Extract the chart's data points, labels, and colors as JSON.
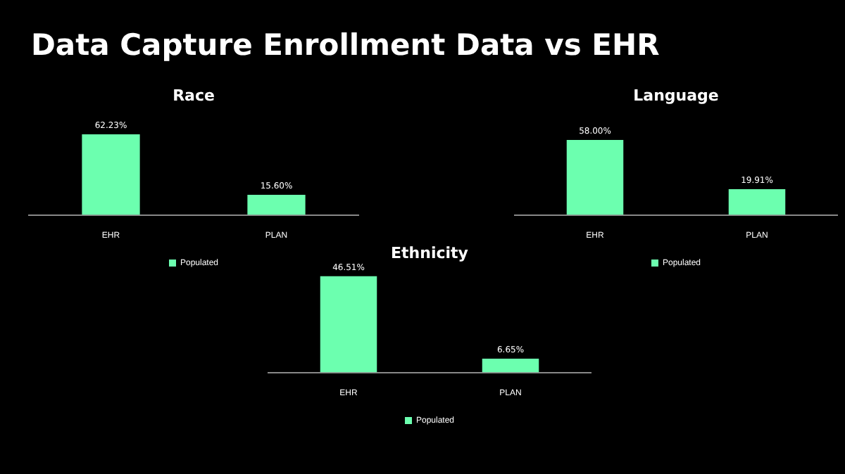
{
  "chart_data": [
    {
      "type": "other",
      "title": "Data Capture Enrollment Data vs EHR"
    },
    {
      "type": "bar",
      "title": "Race",
      "categories": [
        "EHR",
        "PLAN"
      ],
      "series": [
        {
          "name": "Populated",
          "color": "#6cffaf",
          "values": [
            62.23,
            15.6
          ],
          "value_labels": [
            "62.23%",
            "15.60%"
          ]
        }
      ],
      "legend": "bottom",
      "tick_labels": "x"
    },
    {
      "type": "bar",
      "title": "Language",
      "categories": [
        "EHR",
        "PLAN"
      ],
      "series": [
        {
          "name": "Populated",
          "color": "#6cffaf",
          "values": [
            58.0,
            19.91
          ],
          "value_labels": [
            "58.00%",
            "19.91%"
          ]
        }
      ],
      "legend": "bottom",
      "tick_labels": "x"
    },
    {
      "type": "bar",
      "title": "Ethnicity",
      "categories": [
        "EHR",
        "PLAN"
      ],
      "series": [
        {
          "name": "Populated",
          "color": "#6cffaf",
          "values": [
            46.51,
            6.65
          ],
          "value_labels": [
            "46.51%",
            "6.65%"
          ]
        }
      ],
      "legend": "bottom",
      "tick_labels": "x"
    }
  ]
}
